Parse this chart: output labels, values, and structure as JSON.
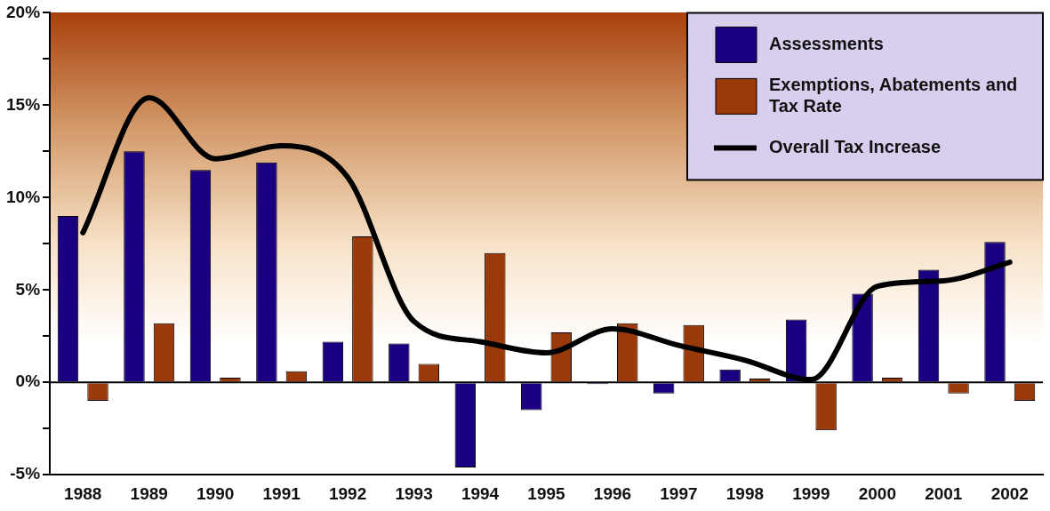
{
  "chart_data": {
    "type": "bar",
    "categories": [
      "1988",
      "1989",
      "1990",
      "1991",
      "1992",
      "1993",
      "1994",
      "1995",
      "1996",
      "1997",
      "1998",
      "1999",
      "2000",
      "2001",
      "2002"
    ],
    "series": [
      {
        "name": "Assessments",
        "color": "#1a0080",
        "values": [
          9.0,
          12.5,
          11.5,
          11.9,
          2.2,
          2.1,
          -4.6,
          -1.5,
          -0.1,
          -0.6,
          0.7,
          3.4,
          4.8,
          6.1,
          7.6
        ]
      },
      {
        "name": "Exemptions, Abatements and Tax Rate",
        "color": "#9a3a0a",
        "values": [
          -1.0,
          3.2,
          0.25,
          0.6,
          7.9,
          1.0,
          7.0,
          2.7,
          3.2,
          3.1,
          0.2,
          -2.6,
          0.25,
          -0.6,
          -1.0
        ]
      },
      {
        "name": "Overall Tax Increase",
        "type": "line",
        "color": "#000000",
        "values": [
          8.1,
          15.4,
          12.1,
          12.8,
          11.1,
          3.3,
          2.2,
          1.6,
          2.9,
          2.0,
          1.2,
          0.15,
          5.2,
          5.5,
          6.5
        ]
      }
    ],
    "ylim": [
      -5,
      20
    ],
    "yticks": [
      {
        "value": -5,
        "label": "-5%"
      },
      {
        "value": -2.5,
        "label": null
      },
      {
        "value": 0,
        "label": "0%"
      },
      {
        "value": 2.5,
        "label": null
      },
      {
        "value": 5,
        "label": "5%"
      },
      {
        "value": 7.5,
        "label": null
      },
      {
        "value": 10,
        "label": "10%"
      },
      {
        "value": 12.5,
        "label": null
      },
      {
        "value": 15,
        "label": "15%"
      },
      {
        "value": 17.5,
        "label": null
      },
      {
        "value": 20,
        "label": "20%"
      }
    ],
    "ref_lines": [
      {
        "axis": "y",
        "value": 0,
        "color": "#000000"
      }
    ],
    "grid": false,
    "legend": "top right",
    "marker": "none",
    "line_style": "solid"
  }
}
